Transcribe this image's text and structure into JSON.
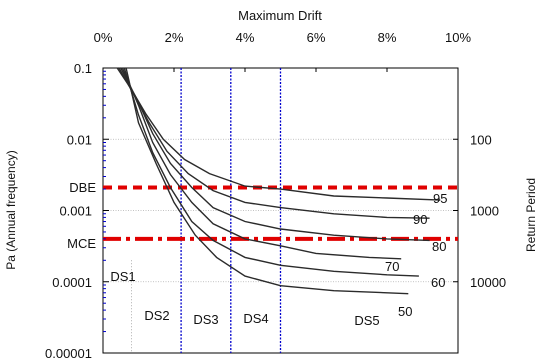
{
  "chart_data": {
    "type": "line",
    "title": "",
    "x_axis": {
      "label": "Maximum Drift",
      "range": [
        0,
        10
      ],
      "unit": "%",
      "ticks": [
        "0%",
        "2%",
        "4%",
        "6%",
        "8%",
        "10%"
      ],
      "tick_values": [
        0,
        2,
        4,
        6,
        8,
        10
      ],
      "position": "top"
    },
    "y_axis_left": {
      "label": "Pa (Annual frequency)",
      "scale": "log",
      "range": [
        1e-05,
        0.1
      ],
      "ticks": [
        "0.1",
        "0.01",
        "0.001",
        "0.0001",
        "0.00001"
      ],
      "tick_values": [
        0.1,
        0.01,
        0.001,
        0.0001,
        1e-05
      ]
    },
    "y_axis_right": {
      "label": "Return Period",
      "ticks": [
        "100",
        "1000",
        "10000"
      ],
      "tick_values": [
        100,
        1000,
        10000
      ]
    },
    "reference_lines": {
      "horizontal": [
        {
          "label": "DBE",
          "pa": 0.0021,
          "color": "#e00000",
          "style": "dashed"
        },
        {
          "label": "MCE",
          "pa": 0.0004,
          "color": "#e00000",
          "style": "dash-dot"
        }
      ],
      "vertical": [
        {
          "drift": 2.2,
          "color": "#0000cc",
          "style": "dotted"
        },
        {
          "drift": 3.6,
          "color": "#0000cc",
          "style": "dotted"
        },
        {
          "drift": 5.0,
          "color": "#0000cc",
          "style": "dotted"
        }
      ]
    },
    "grid": {
      "horizontal": true,
      "vertical": false
    },
    "damage_states": [
      {
        "label": "DS1",
        "x": 0.5,
        "pa": 9e-05
      },
      {
        "label": "DS2",
        "x": 1.5,
        "pa": 2.7e-05
      },
      {
        "label": "DS3",
        "x": 2.9,
        "pa": 2.4e-05
      },
      {
        "label": "DS4",
        "x": 4.3,
        "pa": 2.5e-05
      },
      {
        "label": "DS5",
        "x": 7.5,
        "pa": 2.3e-05
      }
    ],
    "series": [
      {
        "name": "95",
        "x": [
          0.4,
          0.8,
          1.2,
          1.7,
          2.3,
          3.0,
          4.0,
          5.0,
          6.5,
          8.0,
          9.5
        ],
        "pa": [
          0.1,
          0.05,
          0.023,
          0.01,
          0.0052,
          0.0033,
          0.0022,
          0.002,
          0.0016,
          0.0015,
          0.0014
        ]
      },
      {
        "name": "90",
        "x": [
          0.45,
          0.9,
          1.3,
          1.8,
          2.4,
          3.1,
          4.0,
          5.0,
          6.5,
          8.0,
          9.2
        ],
        "pa": [
          0.1,
          0.04,
          0.017,
          0.0068,
          0.0033,
          0.0019,
          0.0013,
          0.0011,
          0.0009,
          0.0008,
          0.00078
        ]
      },
      {
        "name": "80",
        "x": [
          0.5,
          1.0,
          1.4,
          1.9,
          2.5,
          3.1,
          4.0,
          5.0,
          6.5,
          8.0,
          9.2
        ],
        "pa": [
          0.1,
          0.033,
          0.012,
          0.0046,
          0.0021,
          0.0011,
          0.0007,
          0.00055,
          0.00045,
          0.0004,
          0.00038
        ]
      },
      {
        "name": "70",
        "x": [
          0.55,
          1.0,
          1.4,
          1.9,
          2.5,
          3.1,
          4.0,
          5.0,
          6.0,
          7.5,
          8.4
        ],
        "pa": [
          0.1,
          0.03,
          0.009,
          0.0032,
          0.0013,
          0.00065,
          0.0004,
          0.00032,
          0.00025,
          0.00022,
          0.00021
        ]
      },
      {
        "name": "60",
        "x": [
          0.6,
          1.0,
          1.4,
          1.9,
          2.5,
          3.1,
          4.0,
          5.0,
          6.5,
          8.0,
          8.9
        ],
        "pa": [
          0.1,
          0.022,
          0.0065,
          0.0021,
          0.0007,
          0.00038,
          0.00022,
          0.00017,
          0.00014,
          0.000125,
          0.00012
        ]
      },
      {
        "name": "50",
        "x": [
          0.65,
          1.0,
          1.5,
          2.0,
          2.6,
          3.2,
          4.0,
          5.0,
          6.5,
          8.0,
          8.6
        ],
        "pa": [
          0.1,
          0.017,
          0.0045,
          0.0013,
          0.00045,
          0.00022,
          0.00012,
          8.8e-05,
          7.5e-05,
          7e-05,
          6.8e-05
        ]
      }
    ]
  }
}
